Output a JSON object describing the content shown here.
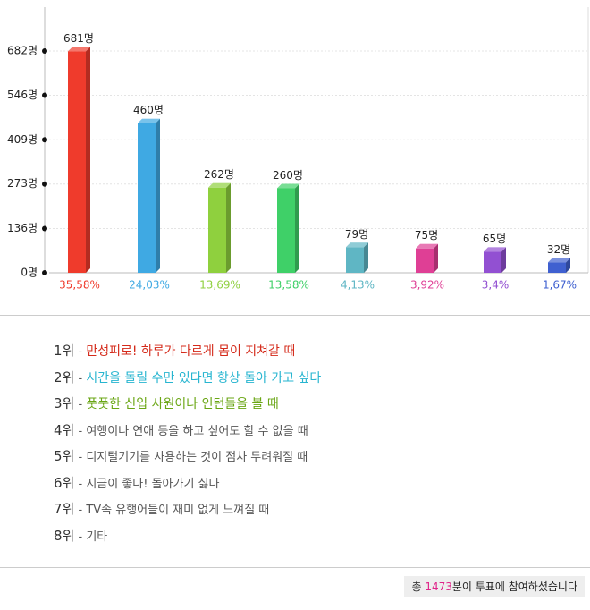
{
  "chart_data": {
    "type": "bar",
    "categories": [
      "35,58%",
      "24,03%",
      "13,69%",
      "13,58%",
      "4,13%",
      "3,92%",
      "3,4%",
      "1,67%"
    ],
    "values": [
      681,
      460,
      262,
      260,
      79,
      75,
      65,
      32
    ],
    "value_labels": [
      "681명",
      "460명",
      "262명",
      "260명",
      "79명",
      "75명",
      "65명",
      "32명"
    ],
    "colors": [
      "#ef3b2c",
      "#3fa9e3",
      "#8fd03e",
      "#3fd068",
      "#5fb6c4",
      "#df3f95",
      "#9250d2",
      "#3f60d0"
    ],
    "ylim": [
      0,
      682
    ],
    "yticks": [
      {
        "value": 0,
        "label": "0명"
      },
      {
        "value": 136,
        "label": "136명"
      },
      {
        "value": 273,
        "label": "273명"
      },
      {
        "value": 409,
        "label": "409명"
      },
      {
        "value": 546,
        "label": "546명"
      },
      {
        "value": 682,
        "label": "682명"
      }
    ],
    "grid": true
  },
  "ranking": [
    {
      "rank": "1위",
      "text": "만성피로! 하루가 다르게 몸이 지쳐갈 때",
      "color": "#d42a1a"
    },
    {
      "rank": "2위",
      "text": "시간을 돌릴 수만 있다면 항상 돌아 가고 싶다",
      "color": "#27b5d0"
    },
    {
      "rank": "3위",
      "text": "풋풋한 신입 사원이나 인턴들을 볼 때",
      "color": "#6aa614"
    },
    {
      "rank": "4위",
      "text": "여행이나 연애 등을 하고 싶어도 할 수 없을 때",
      "color": "#555555"
    },
    {
      "rank": "5위",
      "text": "디지털기기를 사용하는 것이 점차 두려워질 때",
      "color": "#555555"
    },
    {
      "rank": "6위",
      "text": "지금이 좋다! 돌아가기 싫다",
      "color": "#555555"
    },
    {
      "rank": "7위",
      "text": "TV속 유행어들이 재미 없게 느껴질 때",
      "color": "#555555"
    },
    {
      "rank": "8위",
      "text": "기타",
      "color": "#555555"
    }
  ],
  "footer": {
    "prefix": "총",
    "count": 1473,
    "suffix": "분이 투표에 참여하셨습니다"
  }
}
